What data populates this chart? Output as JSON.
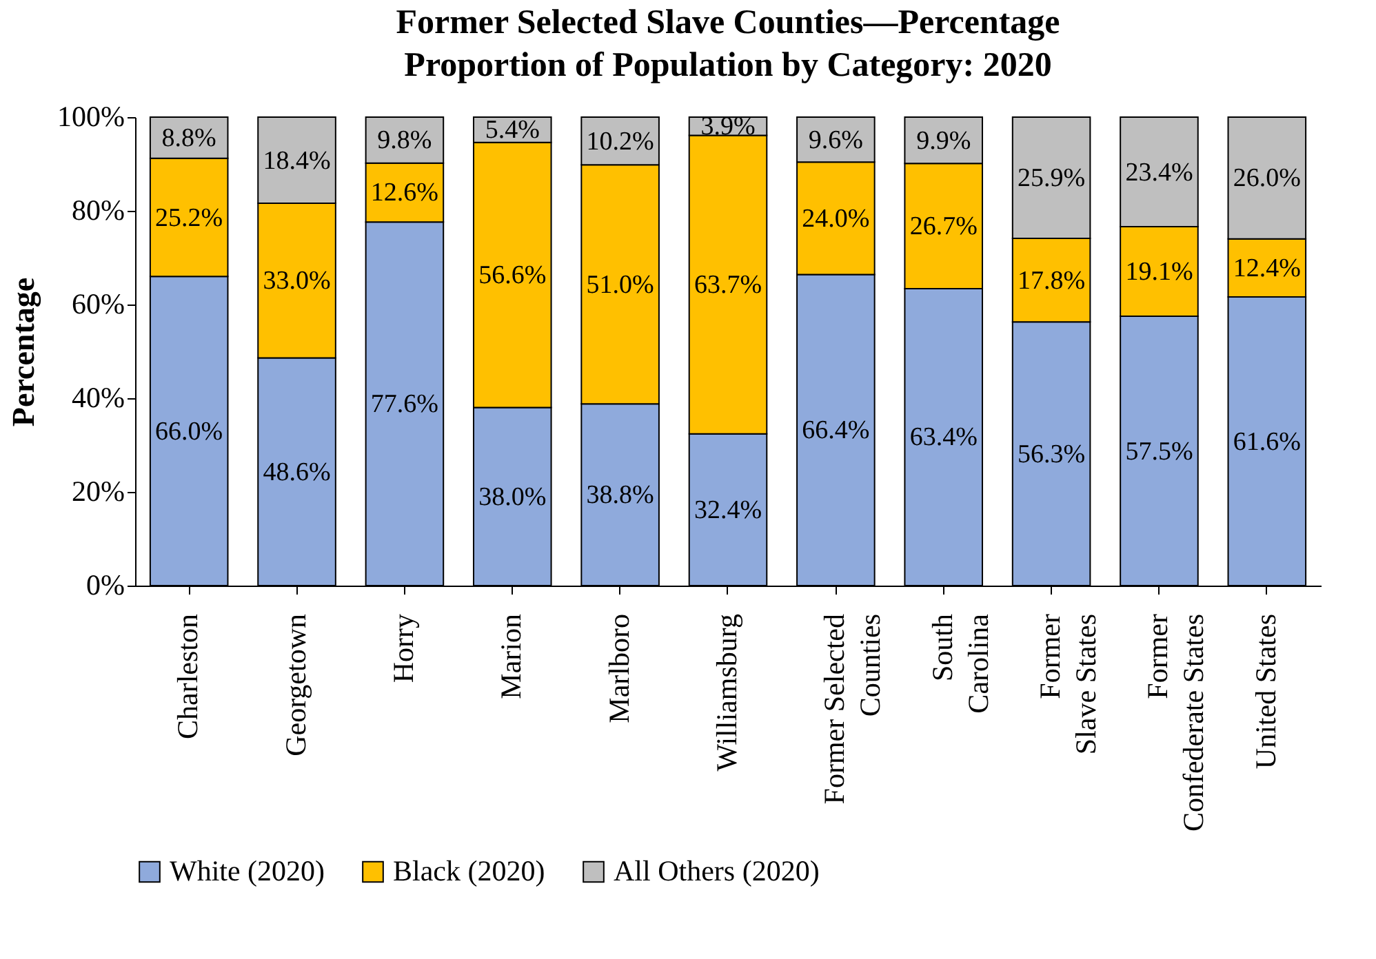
{
  "chart_data": {
    "type": "bar",
    "stacked": true,
    "title": "Former Selected Slave Counties—Percentage Proportion of Population by Category: 2020",
    "ylabel": "Percentage",
    "categories": [
      "Charleston",
      "Georgetown",
      "Horry",
      "Marion",
      "Marlboro",
      "Williamsburg",
      "Former Selected Counties",
      "South Carolina",
      "Former Slave States",
      "Former Confederate States",
      "United States"
    ],
    "series": [
      {
        "name": "White (2020)",
        "color": "#8faadc",
        "values": [
          66.0,
          48.6,
          77.6,
          38.0,
          38.8,
          32.4,
          66.4,
          63.4,
          56.3,
          57.5,
          61.6
        ],
        "value_labels": [
          "66.0%",
          "48.6%",
          "77.6%",
          "38.0%",
          "38.8%",
          "32.4%",
          "66.4%",
          "63.4%",
          "56.3%",
          "57.5%",
          "61.6%"
        ]
      },
      {
        "name": "Black (2020)",
        "color": "#ffc000",
        "values": [
          25.2,
          33.0,
          12.6,
          56.6,
          51.0,
          63.7,
          24.0,
          26.7,
          17.8,
          19.1,
          12.4
        ],
        "value_labels": [
          "25.2%",
          "33.0%",
          "12.6%",
          "56.6%",
          "51.0%",
          "63.7%",
          "24.0%",
          "26.7%",
          "17.8%",
          "19.1%",
          "12.4%"
        ]
      },
      {
        "name": "All Others (2020)",
        "color": "#bfbfbf",
        "values": [
          8.8,
          18.4,
          9.8,
          5.4,
          10.2,
          3.9,
          9.6,
          9.9,
          25.9,
          23.4,
          26.0
        ],
        "value_labels": [
          "8.8%",
          "18.4%",
          "9.8%",
          "5.4%",
          "10.2%",
          "3.9%",
          "9.6%",
          "9.9%",
          "25.9%",
          "23.4%",
          "26.0%"
        ]
      }
    ],
    "ylim": [
      0,
      100
    ],
    "yticks": [
      {
        "value": 0,
        "label": "0%"
      },
      {
        "value": 20,
        "label": "20%"
      },
      {
        "value": 40,
        "label": "40%"
      },
      {
        "value": 60,
        "label": "60%"
      },
      {
        "value": 80,
        "label": "80%"
      },
      {
        "value": 100,
        "label": "100%"
      }
    ],
    "grid": false,
    "legend": "bottom"
  }
}
